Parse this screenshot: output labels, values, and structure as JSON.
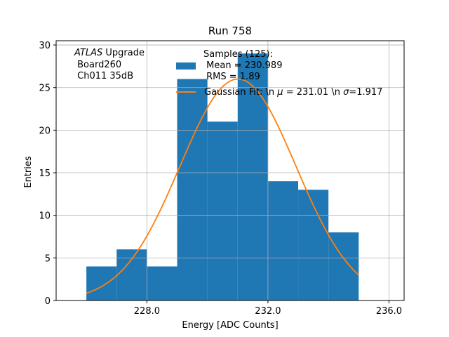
{
  "chart_data": {
    "type": "bar",
    "title": "Run 758",
    "xlabel": "Energy [ADC Counts]",
    "ylabel": "Entries",
    "xlim": [
      225.0,
      236.5
    ],
    "ylim": [
      0,
      30.5
    ],
    "xticks": [
      228.0,
      232.0,
      236.0
    ],
    "xtick_labels": [
      "228.0",
      "232.0",
      "236.0"
    ],
    "yticks": [
      0,
      5,
      10,
      15,
      20,
      25,
      30
    ],
    "ytick_labels": [
      "0",
      "5",
      "10",
      "15",
      "20",
      "25",
      "30"
    ],
    "grid": true,
    "histogram": {
      "bin_edges": [
        226.0,
        227.0,
        228.0,
        229.0,
        230.0,
        231.0,
        232.0,
        233.0,
        234.0,
        235.0
      ],
      "counts": [
        4,
        6,
        4,
        26,
        21,
        29,
        14,
        13,
        8
      ],
      "color": "#1f77b4"
    },
    "fit_curve": {
      "mu": 231.01,
      "sigma": 1.917,
      "amplitude": 26.0,
      "x_range": [
        226.0,
        235.0
      ],
      "color": "#ff7f0e"
    },
    "annotation": {
      "line1_italic": "ATLAS",
      "line1_rest": " Upgrade",
      "line2": " Board260",
      "line3": " Ch011 35dB"
    },
    "legend": {
      "placement": "top",
      "hist_lines": [
        "Samples (125):",
        " Mean = 230.989",
        " RMS = 1.89"
      ],
      "fit_label_parts": [
        "Gaussian Fit: \\n ",
        "μ",
        " = 231.01 \\n ",
        "σ",
        "=1.917"
      ]
    }
  }
}
